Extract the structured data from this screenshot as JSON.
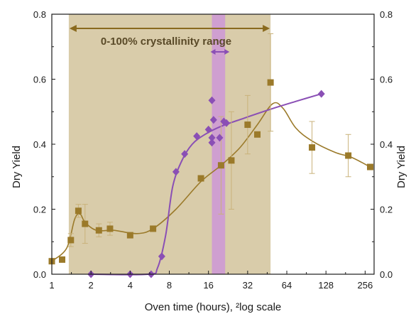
{
  "chart_data": {
    "type": "scatter",
    "x_scale": "log2",
    "xlabel": "Oven time (hours), ²log scale",
    "ylabel": "Dry Yield",
    "ylabel_right": "Dry Yield",
    "xlim": [
      1,
      300
    ],
    "ylim": [
      0,
      0.8
    ],
    "x_ticks": [
      1,
      2,
      4,
      8,
      16,
      32,
      64,
      128,
      256
    ],
    "x_tick_labels": [
      "1",
      "2",
      "4",
      "8",
      "16",
      "32",
      "64",
      "128",
      "256"
    ],
    "y_ticks": [
      0.0,
      0.2,
      0.4,
      0.6,
      0.8
    ],
    "y_tick_labels": [
      "0.0",
      "0.2",
      "0.4",
      "0.6",
      "0.8"
    ],
    "y_tick_labels_right": [
      "0.0",
      "0.2",
      "0.4",
      "0.6",
      "0.8"
    ],
    "shaded_range": {
      "x": [
        1.35,
        48
      ],
      "color": "#d9ccaa"
    },
    "highlight_band": {
      "x": [
        17,
        21.5
      ],
      "color": "#cf9fd0"
    },
    "annotation": {
      "text": "0-100% crystallinity range"
    },
    "series": [
      {
        "marker": "square",
        "color": "#9b7a2a",
        "points": [
          {
            "x": 1.0,
            "y": 0.04,
            "err": 0.0
          },
          {
            "x": 1.2,
            "y": 0.045,
            "err": 0.0
          },
          {
            "x": 1.4,
            "y": 0.105,
            "err": 0.02
          },
          {
            "x": 1.6,
            "y": 0.195,
            "err": 0.02
          },
          {
            "x": 1.8,
            "y": 0.155,
            "err": 0.06
          },
          {
            "x": 2.3,
            "y": 0.135,
            "err": 0.02
          },
          {
            "x": 2.8,
            "y": 0.14,
            "err": 0.02
          },
          {
            "x": 4.0,
            "y": 0.12,
            "err": 0.0
          },
          {
            "x": 6.0,
            "y": 0.14,
            "err": 0.0
          },
          {
            "x": 14.0,
            "y": 0.295,
            "err": 0.0
          },
          {
            "x": 20.0,
            "y": 0.335,
            "err": 0.15
          },
          {
            "x": 24.0,
            "y": 0.35,
            "err": 0.15
          },
          {
            "x": 32.0,
            "y": 0.46,
            "err": 0.09
          },
          {
            "x": 38.0,
            "y": 0.43,
            "err": 0.0
          },
          {
            "x": 48.0,
            "y": 0.59,
            "err": 0.15
          },
          {
            "x": 100.0,
            "y": 0.39,
            "err": 0.08
          },
          {
            "x": 190.0,
            "y": 0.365,
            "err": 0.065
          },
          {
            "x": 280.0,
            "y": 0.33,
            "err": 0.0
          }
        ],
        "trend": [
          [
            1.0,
            0.04
          ],
          [
            1.3,
            0.08
          ],
          [
            1.5,
            0.17
          ],
          [
            1.65,
            0.185
          ],
          [
            1.8,
            0.16
          ],
          [
            2.2,
            0.135
          ],
          [
            3.0,
            0.135
          ],
          [
            4.5,
            0.125
          ],
          [
            6.0,
            0.14
          ],
          [
            9.0,
            0.2
          ],
          [
            14.0,
            0.285
          ],
          [
            20.0,
            0.335
          ],
          [
            28.0,
            0.39
          ],
          [
            38.0,
            0.46
          ],
          [
            50.0,
            0.525
          ],
          [
            60.0,
            0.51
          ],
          [
            75.0,
            0.45
          ],
          [
            100.0,
            0.41
          ],
          [
            150.0,
            0.375
          ],
          [
            200.0,
            0.36
          ],
          [
            280.0,
            0.33
          ]
        ]
      },
      {
        "marker": "diamond",
        "color": "#8a4fb5",
        "points": [
          {
            "x": 2.0,
            "y": 0.0
          },
          {
            "x": 4.0,
            "y": 0.0
          },
          {
            "x": 5.8,
            "y": 0.0
          },
          {
            "x": 7.0,
            "y": 0.055
          },
          {
            "x": 9.0,
            "y": 0.315
          },
          {
            "x": 10.5,
            "y": 0.37
          },
          {
            "x": 13.0,
            "y": 0.425
          },
          {
            "x": 16.0,
            "y": 0.445
          },
          {
            "x": 17.0,
            "y": 0.535
          },
          {
            "x": 17.5,
            "y": 0.475
          },
          {
            "x": 17.0,
            "y": 0.42
          },
          {
            "x": 17.0,
            "y": 0.405
          },
          {
            "x": 19.5,
            "y": 0.42
          },
          {
            "x": 21.0,
            "y": 0.47
          },
          {
            "x": 22.0,
            "y": 0.465
          },
          {
            "x": 118.0,
            "y": 0.555
          }
        ],
        "trend": [
          [
            2.0,
            0.0
          ],
          [
            5.5,
            0.0
          ],
          [
            6.5,
            0.02
          ],
          [
            7.5,
            0.12
          ],
          [
            8.5,
            0.27
          ],
          [
            10.0,
            0.35
          ],
          [
            12.0,
            0.4
          ],
          [
            15.0,
            0.43
          ],
          [
            20.0,
            0.455
          ],
          [
            30.0,
            0.48
          ],
          [
            50.0,
            0.51
          ],
          [
            80.0,
            0.535
          ],
          [
            118.0,
            0.555
          ]
        ]
      }
    ]
  }
}
